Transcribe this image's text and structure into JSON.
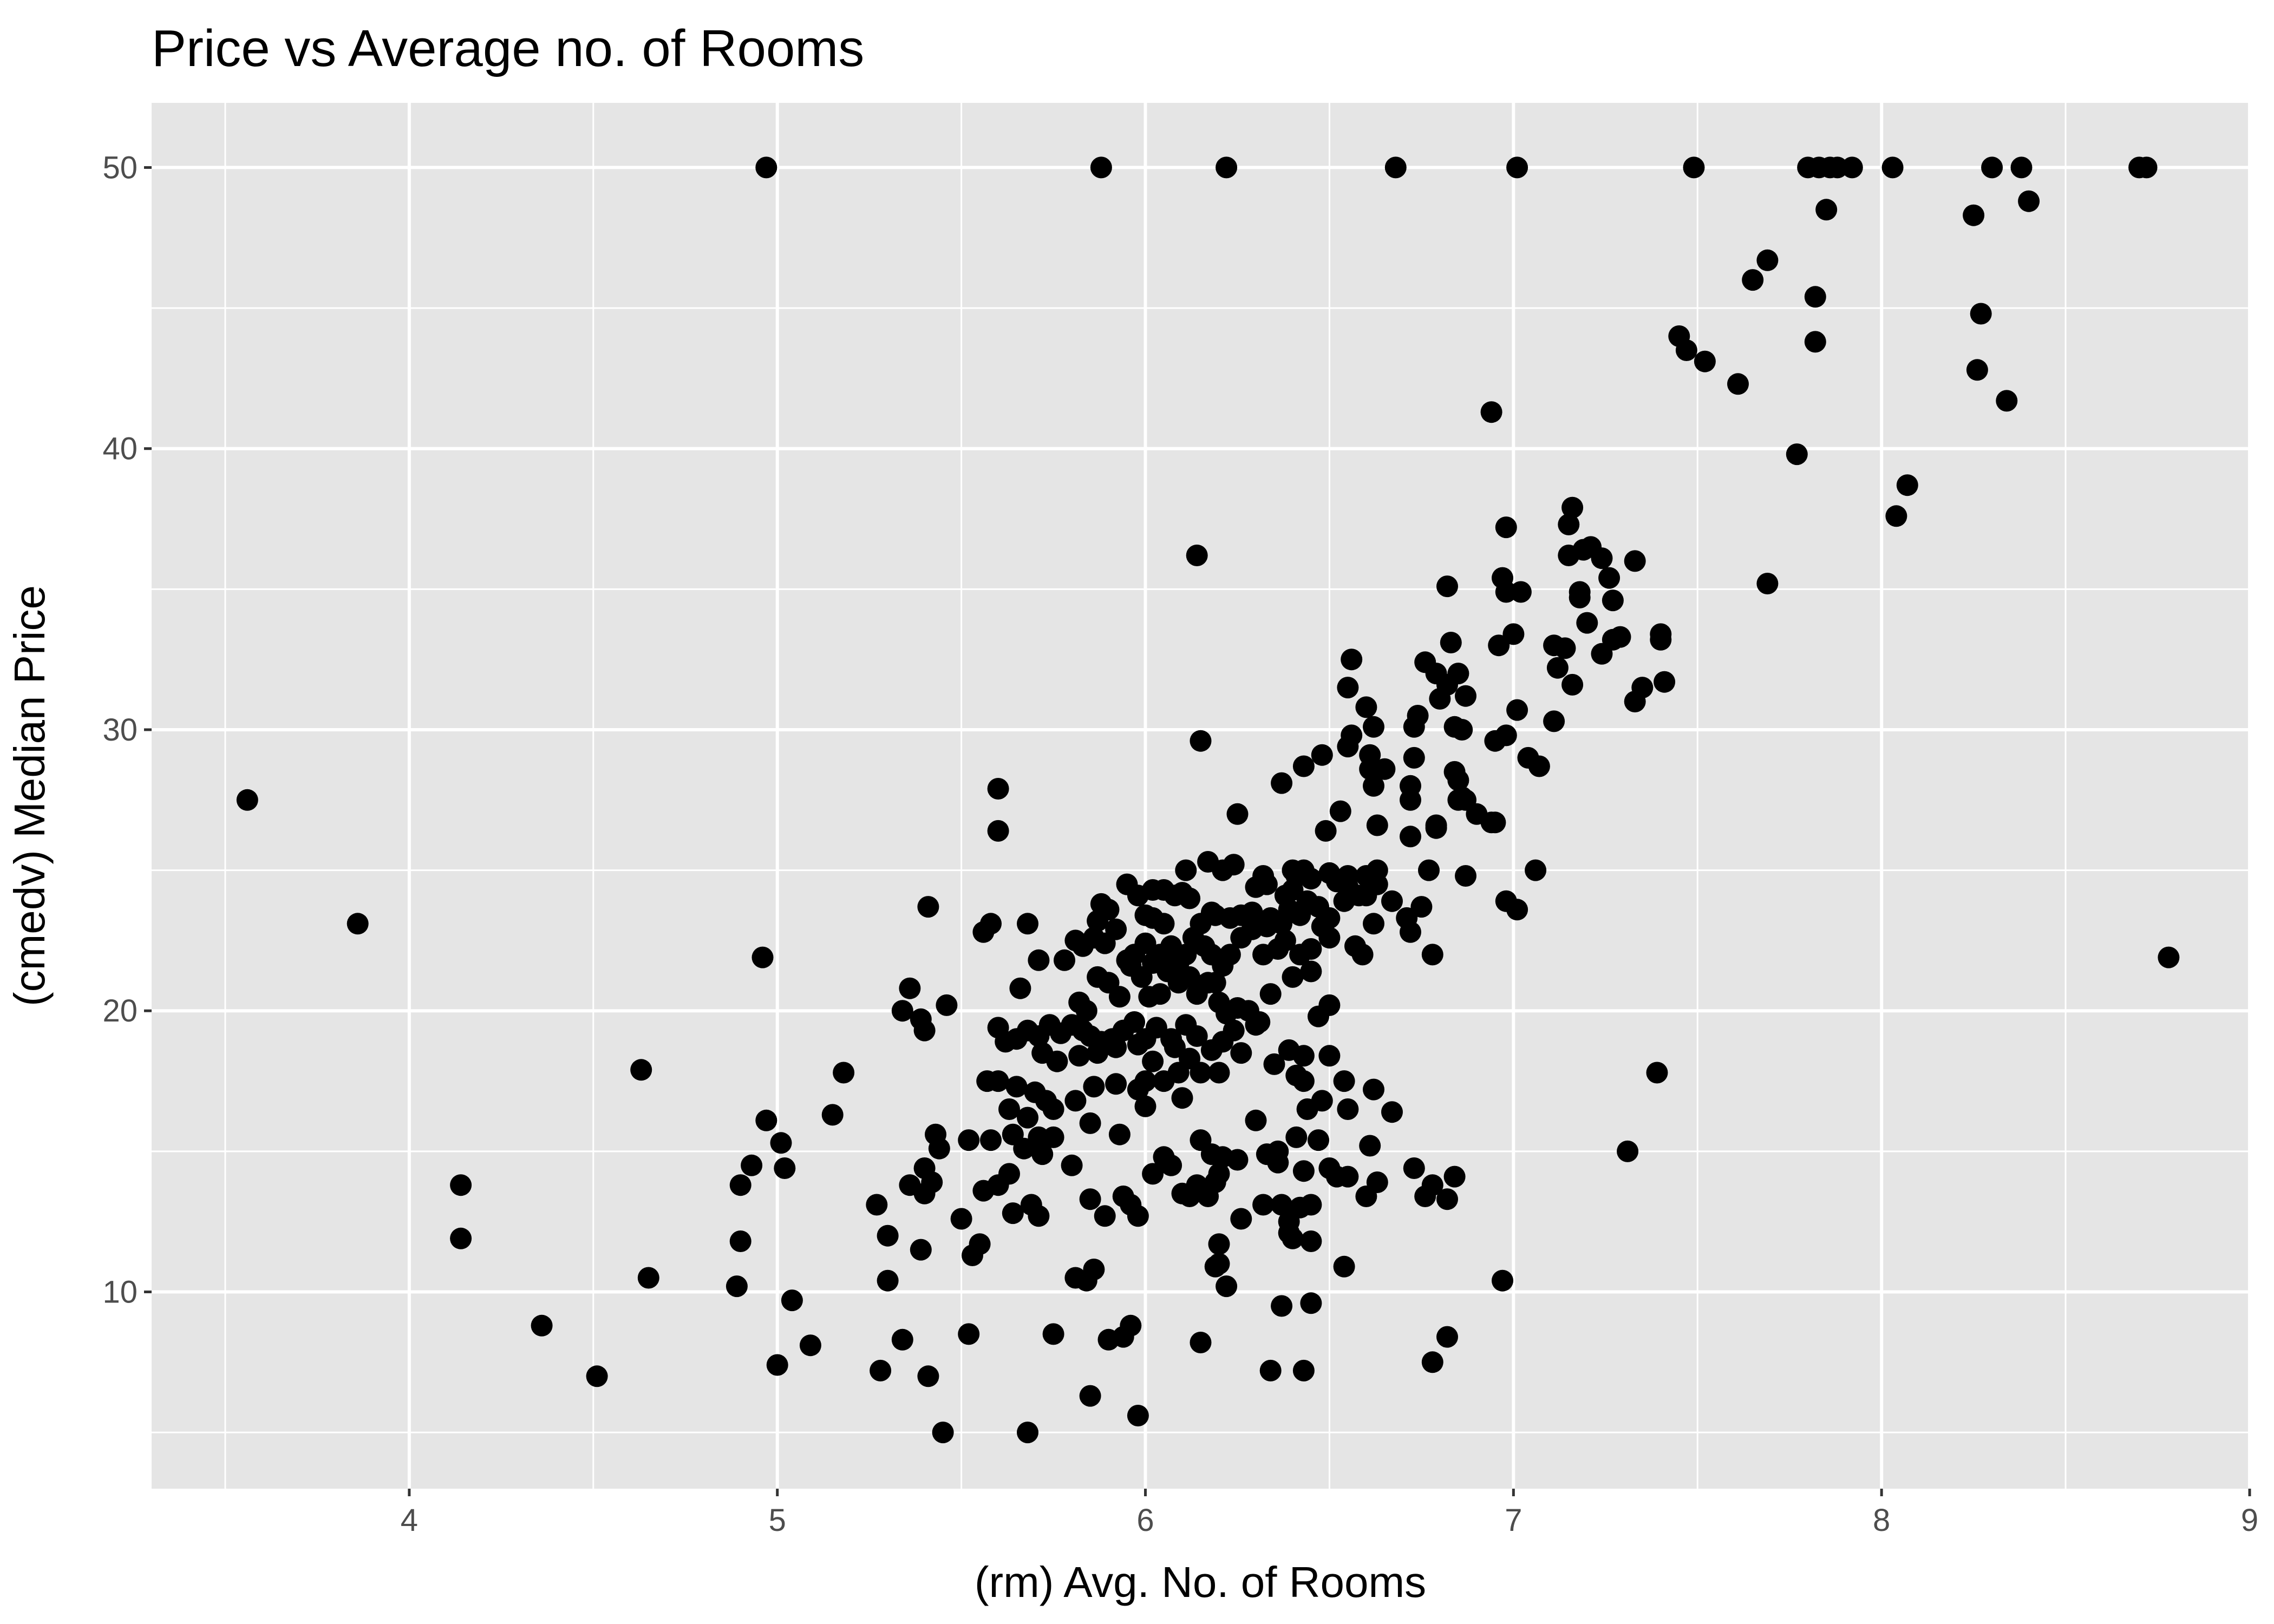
{
  "chart_data": {
    "type": "scatter",
    "title": "Price vs Average no. of Rooms",
    "xlabel": "(rm) Avg. No. of Rooms",
    "ylabel": "(cmedv) Median Price",
    "xlim": [
      3.3,
      9.0
    ],
    "ylim": [
      3.0,
      52.3
    ],
    "x_ticks": [
      "4",
      "5",
      "6",
      "7",
      "8",
      "9"
    ],
    "y_ticks": [
      "10",
      "20",
      "30",
      "40",
      "50"
    ],
    "grid": true,
    "legend": "none",
    "colors": {
      "panel": "#e5e5e5",
      "grid": "#ffffff",
      "point": "#000000",
      "tick_text": "#4d4d4d"
    },
    "points": [
      [
        4.97,
        50.0
      ],
      [
        5.88,
        50.0
      ],
      [
        6.22,
        50.0
      ],
      [
        6.68,
        50.0
      ],
      [
        7.01,
        50.0
      ],
      [
        7.49,
        50.0
      ],
      [
        7.8,
        50.0
      ],
      [
        7.83,
        50.0
      ],
      [
        7.86,
        50.0
      ],
      [
        7.88,
        50.0
      ],
      [
        7.92,
        50.0
      ],
      [
        8.03,
        50.0
      ],
      [
        8.3,
        50.0
      ],
      [
        8.38,
        50.0
      ],
      [
        8.7,
        50.0
      ],
      [
        8.72,
        50.0
      ],
      [
        7.85,
        48.5
      ],
      [
        8.25,
        48.3
      ],
      [
        8.4,
        48.8
      ],
      [
        7.69,
        46.7
      ],
      [
        7.65,
        46.0
      ],
      [
        7.82,
        45.4
      ],
      [
        8.27,
        44.8
      ],
      [
        7.45,
        44.0
      ],
      [
        7.47,
        43.5
      ],
      [
        7.52,
        43.1
      ],
      [
        7.82,
        43.8
      ],
      [
        8.26,
        42.8
      ],
      [
        7.61,
        42.3
      ],
      [
        8.34,
        41.7
      ],
      [
        6.94,
        41.3
      ],
      [
        7.77,
        39.8
      ],
      [
        8.07,
        38.7
      ],
      [
        8.04,
        37.6
      ],
      [
        7.69,
        35.2
      ],
      [
        7.16,
        37.9
      ],
      [
        7.15,
        37.3
      ],
      [
        6.98,
        37.2
      ],
      [
        6.14,
        36.2
      ],
      [
        7.33,
        36.0
      ],
      [
        7.19,
        36.4
      ],
      [
        7.21,
        36.5
      ],
      [
        7.15,
        36.2
      ],
      [
        7.24,
        36.1
      ],
      [
        7.26,
        35.4
      ],
      [
        7.27,
        34.6
      ],
      [
        7.18,
        34.9
      ],
      [
        7.18,
        34.7
      ],
      [
        6.97,
        35.4
      ],
      [
        6.98,
        34.9
      ],
      [
        7.02,
        34.9
      ],
      [
        6.82,
        35.1
      ],
      [
        7.2,
        33.8
      ],
      [
        7.4,
        33.4
      ],
      [
        7.4,
        33.2
      ],
      [
        7.27,
        33.2
      ],
      [
        7.29,
        33.3
      ],
      [
        7.24,
        32.7
      ],
      [
        7.14,
        32.9
      ],
      [
        7.11,
        33.0
      ],
      [
        7.0,
        33.4
      ],
      [
        6.96,
        33.0
      ],
      [
        6.83,
        33.1
      ],
      [
        7.12,
        32.2
      ],
      [
        7.16,
        31.6
      ],
      [
        7.41,
        31.7
      ],
      [
        7.35,
        31.5
      ],
      [
        7.33,
        31.0
      ],
      [
        6.76,
        32.4
      ],
      [
        6.79,
        32.0
      ],
      [
        6.85,
        32.0
      ],
      [
        6.82,
        31.6
      ],
      [
        6.8,
        31.1
      ],
      [
        6.87,
        31.2
      ],
      [
        6.56,
        32.5
      ],
      [
        6.55,
        31.5
      ],
      [
        6.6,
        30.8
      ],
      [
        6.62,
        30.1
      ],
      [
        6.73,
        30.1
      ],
      [
        6.74,
        30.5
      ],
      [
        6.86,
        30.0
      ],
      [
        6.84,
        30.1
      ],
      [
        7.01,
        30.7
      ],
      [
        6.98,
        29.8
      ],
      [
        6.95,
        29.6
      ],
      [
        7.11,
        30.3
      ],
      [
        7.04,
        29.0
      ],
      [
        7.07,
        28.7
      ],
      [
        6.15,
        29.6
      ],
      [
        6.48,
        29.1
      ],
      [
        6.61,
        29.1
      ],
      [
        6.61,
        28.6
      ],
      [
        6.65,
        28.6
      ],
      [
        6.73,
        29.0
      ],
      [
        6.56,
        29.8
      ],
      [
        6.55,
        29.4
      ],
      [
        6.43,
        28.7
      ],
      [
        6.37,
        28.1
      ],
      [
        6.62,
        28.0
      ],
      [
        6.72,
        28.0
      ],
      [
        6.72,
        27.5
      ],
      [
        6.84,
        28.5
      ],
      [
        6.85,
        28.2
      ],
      [
        6.86,
        27.6
      ],
      [
        6.87,
        27.5
      ],
      [
        6.85,
        27.5
      ],
      [
        6.9,
        27.0
      ],
      [
        6.94,
        26.7
      ],
      [
        6.95,
        26.7
      ],
      [
        6.72,
        26.2
      ],
      [
        6.79,
        26.5
      ],
      [
        6.79,
        26.6
      ],
      [
        6.63,
        26.6
      ],
      [
        6.53,
        27.1
      ],
      [
        6.49,
        26.4
      ],
      [
        6.25,
        27.0
      ],
      [
        5.6,
        27.9
      ],
      [
        5.6,
        26.4
      ],
      [
        7.06,
        25.0
      ],
      [
        6.98,
        23.9
      ],
      [
        7.01,
        23.6
      ],
      [
        6.87,
        24.8
      ],
      [
        6.77,
        25.0
      ],
      [
        6.63,
        25.0
      ],
      [
        6.63,
        24.5
      ],
      [
        6.6,
        24.8
      ],
      [
        6.6,
        24.1
      ],
      [
        6.55,
        24.8
      ],
      [
        6.55,
        24.4
      ],
      [
        6.5,
        24.9
      ],
      [
        6.52,
        24.6
      ],
      [
        6.45,
        24.7
      ],
      [
        6.41,
        24.8
      ],
      [
        6.43,
        25.0
      ],
      [
        6.4,
        24.3
      ],
      [
        6.4,
        25.0
      ],
      [
        6.38,
        24.1
      ],
      [
        6.32,
        24.8
      ],
      [
        6.33,
        24.5
      ],
      [
        6.3,
        24.4
      ],
      [
        6.24,
        25.2
      ],
      [
        6.21,
        25.0
      ],
      [
        6.17,
        25.3
      ],
      [
        6.11,
        25.0
      ],
      [
        6.1,
        24.2
      ],
      [
        6.05,
        24.3
      ],
      [
        6.02,
        24.3
      ],
      [
        5.95,
        24.5
      ],
      [
        5.98,
        24.1
      ],
      [
        6.0,
        23.4
      ],
      [
        6.02,
        23.3
      ],
      [
        6.05,
        23.1
      ],
      [
        6.08,
        24.1
      ],
      [
        6.12,
        24.0
      ],
      [
        6.15,
        23.1
      ],
      [
        6.18,
        23.5
      ],
      [
        6.19,
        23.4
      ],
      [
        6.23,
        23.3
      ],
      [
        6.26,
        23.4
      ],
      [
        6.29,
        23.5
      ],
      [
        6.33,
        23.0
      ],
      [
        6.34,
        23.3
      ],
      [
        6.37,
        23.1
      ],
      [
        6.39,
        23.6
      ],
      [
        6.42,
        23.4
      ],
      [
        6.44,
        23.9
      ],
      [
        6.47,
        23.7
      ],
      [
        6.48,
        23.0
      ],
      [
        6.5,
        23.3
      ],
      [
        6.54,
        23.9
      ],
      [
        6.58,
        24.1
      ],
      [
        6.62,
        23.1
      ],
      [
        6.67,
        23.9
      ],
      [
        6.71,
        23.3
      ],
      [
        6.72,
        22.8
      ],
      [
        6.75,
        23.7
      ],
      [
        6.57,
        22.3
      ],
      [
        6.59,
        22.0
      ],
      [
        6.78,
        22.0
      ],
      [
        6.5,
        22.6
      ],
      [
        6.45,
        22.2
      ],
      [
        6.42,
        22.0
      ],
      [
        6.38,
        22.5
      ],
      [
        6.36,
        22.2
      ],
      [
        6.32,
        22.0
      ],
      [
        6.29,
        22.9
      ],
      [
        6.26,
        22.6
      ],
      [
        6.23,
        22.0
      ],
      [
        6.21,
        21.6
      ],
      [
        6.19,
        21.0
      ],
      [
        6.18,
        22.0
      ],
      [
        6.16,
        22.3
      ],
      [
        6.13,
        22.6
      ],
      [
        6.11,
        22.0
      ],
      [
        6.09,
        21.7
      ],
      [
        6.07,
        22.3
      ],
      [
        6.04,
        22.0
      ],
      [
        6.02,
        21.7
      ],
      [
        6.0,
        22.4
      ],
      [
        5.97,
        22.0
      ],
      [
        5.95,
        21.8
      ],
      [
        5.92,
        22.9
      ],
      [
        5.89,
        22.4
      ],
      [
        5.86,
        22.6
      ],
      [
        5.83,
        22.3
      ],
      [
        5.81,
        22.5
      ],
      [
        5.87,
        23.2
      ],
      [
        5.9,
        23.6
      ],
      [
        5.88,
        23.8
      ],
      [
        5.68,
        23.1
      ],
      [
        5.58,
        23.1
      ],
      [
        5.56,
        22.8
      ],
      [
        5.41,
        23.7
      ],
      [
        5.36,
        20.8
      ],
      [
        5.34,
        20.0
      ],
      [
        5.39,
        19.7
      ],
      [
        5.4,
        19.3
      ],
      [
        5.46,
        20.2
      ],
      [
        5.6,
        19.4
      ],
      [
        5.66,
        20.8
      ],
      [
        5.71,
        21.8
      ],
      [
        5.78,
        21.8
      ],
      [
        5.82,
        20.3
      ],
      [
        5.84,
        20.0
      ],
      [
        5.87,
        21.2
      ],
      [
        5.9,
        21.0
      ],
      [
        5.93,
        20.5
      ],
      [
        5.96,
        21.6
      ],
      [
        5.99,
        21.2
      ],
      [
        6.01,
        20.5
      ],
      [
        6.04,
        20.6
      ],
      [
        6.06,
        21.4
      ],
      [
        6.09,
        21.0
      ],
      [
        6.12,
        21.2
      ],
      [
        6.14,
        20.6
      ],
      [
        6.17,
        21.0
      ],
      [
        6.2,
        20.3
      ],
      [
        6.22,
        19.9
      ],
      [
        6.25,
        20.1
      ],
      [
        6.28,
        20.0
      ],
      [
        6.31,
        19.6
      ],
      [
        6.34,
        20.6
      ],
      [
        6.4,
        21.2
      ],
      [
        6.45,
        21.4
      ],
      [
        6.47,
        19.8
      ],
      [
        6.5,
        20.2
      ],
      [
        6.3,
        19.5
      ],
      [
        6.24,
        19.3
      ],
      [
        6.21,
        18.9
      ],
      [
        6.14,
        19.1
      ],
      [
        6.11,
        19.5
      ],
      [
        6.07,
        19.0
      ],
      [
        6.03,
        19.4
      ],
      [
        6.0,
        19.0
      ],
      [
        5.97,
        19.6
      ],
      [
        5.94,
        19.3
      ],
      [
        5.91,
        19.0
      ],
      [
        5.88,
        18.9
      ],
      [
        5.85,
        19.1
      ],
      [
        5.83,
        19.3
      ],
      [
        5.8,
        19.5
      ],
      [
        5.77,
        19.2
      ],
      [
        5.74,
        19.5
      ],
      [
        5.71,
        19.1
      ],
      [
        5.68,
        19.3
      ],
      [
        5.65,
        19.0
      ],
      [
        5.62,
        18.9
      ],
      [
        5.72,
        18.5
      ],
      [
        5.76,
        18.2
      ],
      [
        5.82,
        18.4
      ],
      [
        5.87,
        18.5
      ],
      [
        5.92,
        18.7
      ],
      [
        5.98,
        18.8
      ],
      [
        6.02,
        18.2
      ],
      [
        6.08,
        18.7
      ],
      [
        6.12,
        18.3
      ],
      [
        6.18,
        18.6
      ],
      [
        6.09,
        17.8
      ],
      [
        6.26,
        18.5
      ],
      [
        6.43,
        18.4
      ],
      [
        6.39,
        18.6
      ],
      [
        6.35,
        18.1
      ],
      [
        6.41,
        17.7
      ],
      [
        6.43,
        17.5
      ],
      [
        6.5,
        18.4
      ],
      [
        6.54,
        17.5
      ],
      [
        6.48,
        16.8
      ],
      [
        6.44,
        16.5
      ],
      [
        6.62,
        17.2
      ],
      [
        6.55,
        16.5
      ],
      [
        6.67,
        16.4
      ],
      [
        6.2,
        17.8
      ],
      [
        6.15,
        17.8
      ],
      [
        6.05,
        17.5
      ],
      [
        6.0,
        17.5
      ],
      [
        5.98,
        17.2
      ],
      [
        5.92,
        17.4
      ],
      [
        5.86,
        17.3
      ],
      [
        5.81,
        16.8
      ],
      [
        5.75,
        16.5
      ],
      [
        5.7,
        17.1
      ],
      [
        5.65,
        17.3
      ],
      [
        5.6,
        17.5
      ],
      [
        5.57,
        17.5
      ],
      [
        5.63,
        16.5
      ],
      [
        5.68,
        16.2
      ],
      [
        5.73,
        16.8
      ],
      [
        5.64,
        15.6
      ],
      [
        5.75,
        15.5
      ],
      [
        5.85,
        16.0
      ],
      [
        5.93,
        15.6
      ],
      [
        6.0,
        16.6
      ],
      [
        6.1,
        16.9
      ],
      [
        6.15,
        15.4
      ],
      [
        6.18,
        14.9
      ],
      [
        6.21,
        14.8
      ],
      [
        6.25,
        14.7
      ],
      [
        6.3,
        16.1
      ],
      [
        6.36,
        15.0
      ],
      [
        6.41,
        15.5
      ],
      [
        6.47,
        15.4
      ],
      [
        6.52,
        14.1
      ],
      [
        6.61,
        15.2
      ],
      [
        6.5,
        14.4
      ],
      [
        6.43,
        14.3
      ],
      [
        6.36,
        14.6
      ],
      [
        6.33,
        14.9
      ],
      [
        6.07,
        14.5
      ],
      [
        6.05,
        14.8
      ],
      [
        6.02,
        14.2
      ],
      [
        5.8,
        14.5
      ],
      [
        5.72,
        14.9
      ],
      [
        5.71,
        15.5
      ],
      [
        5.67,
        15.1
      ],
      [
        5.58,
        15.4
      ],
      [
        5.52,
        15.4
      ],
      [
        5.43,
        15.6
      ],
      [
        5.44,
        15.1
      ],
      [
        5.4,
        14.4
      ],
      [
        5.36,
        13.8
      ],
      [
        5.4,
        13.5
      ],
      [
        5.42,
        13.9
      ],
      [
        5.5,
        12.6
      ],
      [
        5.56,
        13.6
      ],
      [
        5.6,
        13.8
      ],
      [
        5.63,
        14.2
      ],
      [
        5.64,
        12.8
      ],
      [
        5.69,
        13.1
      ],
      [
        5.71,
        12.7
      ],
      [
        5.85,
        13.3
      ],
      [
        5.89,
        12.7
      ],
      [
        5.94,
        13.4
      ],
      [
        5.96,
        13.1
      ],
      [
        5.98,
        12.7
      ],
      [
        6.1,
        13.5
      ],
      [
        6.12,
        13.4
      ],
      [
        6.14,
        13.8
      ],
      [
        6.17,
        13.4
      ],
      [
        6.19,
        13.9
      ],
      [
        6.2,
        14.2
      ],
      [
        6.26,
        12.6
      ],
      [
        6.32,
        13.1
      ],
      [
        6.37,
        13.1
      ],
      [
        6.39,
        12.5
      ],
      [
        6.42,
        13.0
      ],
      [
        6.45,
        13.1
      ],
      [
        6.55,
        14.1
      ],
      [
        6.6,
        13.4
      ],
      [
        6.63,
        13.9
      ],
      [
        6.73,
        14.4
      ],
      [
        6.76,
        13.4
      ],
      [
        6.78,
        13.8
      ],
      [
        6.82,
        13.3
      ],
      [
        6.84,
        14.1
      ],
      [
        6.4,
        11.9
      ],
      [
        6.45,
        11.8
      ],
      [
        6.39,
        12.1
      ],
      [
        6.2,
        11.7
      ],
      [
        6.2,
        11.0
      ],
      [
        6.22,
        10.2
      ],
      [
        6.19,
        10.9
      ],
      [
        6.54,
        10.9
      ],
      [
        6.97,
        10.4
      ],
      [
        7.31,
        15.0
      ],
      [
        7.39,
        17.8
      ],
      [
        5.53,
        11.3
      ],
      [
        5.55,
        11.7
      ],
      [
        5.39,
        11.5
      ],
      [
        5.3,
        12.0
      ],
      [
        5.27,
        13.1
      ],
      [
        5.3,
        10.4
      ],
      [
        5.84,
        10.4
      ],
      [
        5.86,
        10.8
      ],
      [
        5.81,
        10.5
      ],
      [
        4.89,
        10.2
      ],
      [
        4.9,
        11.8
      ],
      [
        4.9,
        13.8
      ],
      [
        4.93,
        14.5
      ],
      [
        4.97,
        16.1
      ],
      [
        5.01,
        15.3
      ],
      [
        5.02,
        14.4
      ],
      [
        5.15,
        16.3
      ],
      [
        5.18,
        17.8
      ],
      [
        4.63,
        17.9
      ],
      [
        4.65,
        10.5
      ],
      [
        5.04,
        9.7
      ],
      [
        4.36,
        8.8
      ],
      [
        4.51,
        7.0
      ],
      [
        5.0,
        7.4
      ],
      [
        5.09,
        8.1
      ],
      [
        5.28,
        7.2
      ],
      [
        5.34,
        8.3
      ],
      [
        5.41,
        7.0
      ],
      [
        5.45,
        5.0
      ],
      [
        5.52,
        8.5
      ],
      [
        5.68,
        5.0
      ],
      [
        5.75,
        8.5
      ],
      [
        5.85,
        6.3
      ],
      [
        5.9,
        8.3
      ],
      [
        5.94,
        8.4
      ],
      [
        5.96,
        8.8
      ],
      [
        5.98,
        5.6
      ],
      [
        6.15,
        8.2
      ],
      [
        6.37,
        9.5
      ],
      [
        6.34,
        7.2
      ],
      [
        6.43,
        7.2
      ],
      [
        6.45,
        9.6
      ],
      [
        6.78,
        7.5
      ],
      [
        6.82,
        8.4
      ],
      [
        4.14,
        13.8
      ],
      [
        4.14,
        11.9
      ],
      [
        3.56,
        27.5
      ],
      [
        3.86,
        23.1
      ],
      [
        4.96,
        21.9
      ],
      [
        8.78,
        21.9
      ]
    ]
  }
}
